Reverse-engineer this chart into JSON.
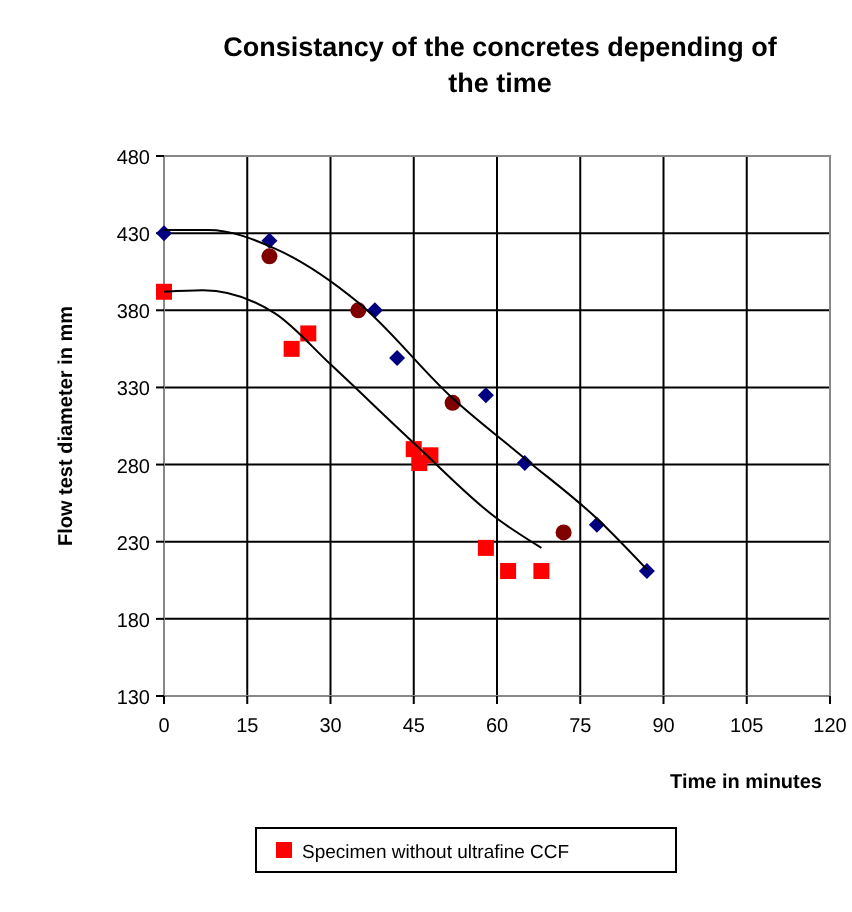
{
  "chart_data": {
    "type": "scatter",
    "title": "Consistancy of the concretes depending of the time",
    "xlabel": "Time in minutes",
    "ylabel": "Flow test diameter in mm",
    "xlim": [
      0,
      120
    ],
    "xticks": [
      0,
      15,
      30,
      45,
      60,
      75,
      90,
      105,
      120
    ],
    "ylim": [
      130,
      480
    ],
    "yticks": [
      130,
      180,
      230,
      280,
      330,
      380,
      430,
      480
    ],
    "grid": true,
    "legend": "bottom",
    "series": [
      {
        "name": "Specimen without ultrafine CCF",
        "color": "#ff0000",
        "marker": "square",
        "x": [
          0,
          23,
          26,
          45,
          46,
          48,
          58,
          62,
          68
        ],
        "values": [
          392,
          355,
          365,
          290,
          281,
          286,
          226,
          211,
          211
        ]
      },
      {
        "color": "#000080",
        "marker": "diamond",
        "x": [
          0,
          19,
          38,
          42,
          58,
          65,
          78,
          87
        ],
        "values": [
          430,
          425,
          380,
          349,
          325,
          281,
          241,
          211
        ]
      },
      {
        "color": "#800000",
        "marker": "circle",
        "x": [
          19,
          35,
          52,
          72
        ],
        "values": [
          415,
          380,
          320,
          236
        ]
      },
      {
        "type": "line",
        "color": "#000000",
        "marker": "none",
        "x": [
          0,
          8,
          20,
          35,
          52,
          65,
          78,
          87
        ],
        "values": [
          432,
          432,
          420,
          385,
          323,
          284,
          245,
          212
        ]
      },
      {
        "type": "line",
        "color": "#000000",
        "marker": "none",
        "x": [
          0,
          7,
          20,
          30,
          45,
          60,
          68
        ],
        "values": [
          392,
          393,
          378,
          345,
          294,
          245,
          226
        ]
      }
    ]
  }
}
